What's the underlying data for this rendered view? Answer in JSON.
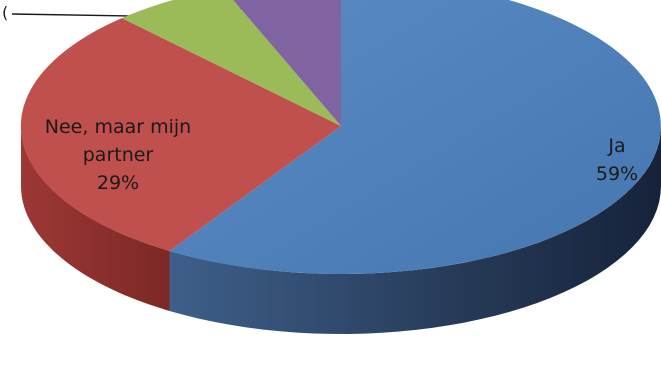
{
  "chart_data": {
    "type": "pie",
    "title": "",
    "style": "3d-exploded-perspective",
    "slices": [
      {
        "name": "Ja",
        "value": 59,
        "label_lines": [
          "Ja",
          "59%"
        ],
        "color": "#4F81BD",
        "side_color": "#1F2F46"
      },
      {
        "name": "Nee, maar mijn partner",
        "value": 29,
        "label_lines": [
          "Nee, maar mijn",
          "partner",
          "29%"
        ],
        "color": "#C0504D",
        "side_color": "#8C2E2B"
      },
      {
        "name": "",
        "value": 6,
        "label_lines": [],
        "color": "#9BBB59",
        "side_color": "#6E8A35"
      },
      {
        "name": "",
        "value": 6,
        "label_lines": [],
        "color": "#8064A2",
        "side_color": "#56407A"
      }
    ],
    "legend": "none"
  }
}
